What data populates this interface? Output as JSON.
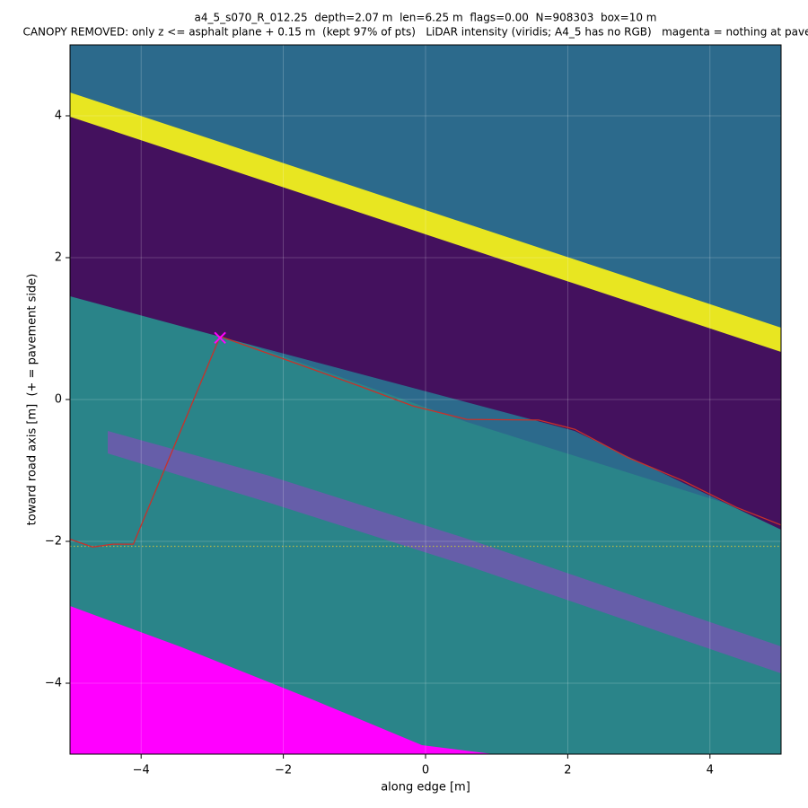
{
  "chart_data": {
    "type": "line",
    "title": "a4_5_s070_R_012.25  depth=2.07 m  len=6.25 m  flags=0.00  N=908303  box=10 m",
    "subtitle": "CANOPY REMOVED: only z <= asphalt plane + 0.15 m  (kept 97% of pts)   LiDAR intensity (viridis; A4_5 has no RGB)   magenta = nothing at paveme",
    "xlabel": "along edge [m]",
    "ylabel": "toward road axis [m]  (+ = pavement side)",
    "xlim": [
      -5,
      5
    ],
    "ylim": [
      -5,
      5
    ],
    "xticks": [
      {
        "value": -4,
        "label": "−4"
      },
      {
        "value": -2,
        "label": "−2"
      },
      0,
      2,
      4
    ],
    "yticks": [
      {
        "value": -4,
        "label": "−4"
      },
      {
        "value": -2,
        "label": "−2"
      },
      0,
      2,
      4
    ],
    "grid": true,
    "series": [
      {
        "color": "#c8312a",
        "x": [
          -5,
          -4.68,
          -4.4,
          -4.11,
          -2.89,
          -1.82,
          -0.93,
          -0.18,
          0.58,
          1.59,
          2.1,
          2.85,
          3.61,
          4.37,
          5
        ],
        "values": [
          -1.97,
          -2.08,
          -2.04,
          -2.04,
          0.89,
          0.51,
          0.19,
          -0.09,
          -0.28,
          -0.29,
          -0.42,
          -0.82,
          -1.14,
          -1.52,
          -1.77
        ]
      }
    ],
    "marker": {
      "x": -2.89,
      "y": 0.87,
      "color": "#ff00ff"
    },
    "hline": {
      "y": -2.07,
      "color": "#b8b84a"
    }
  }
}
